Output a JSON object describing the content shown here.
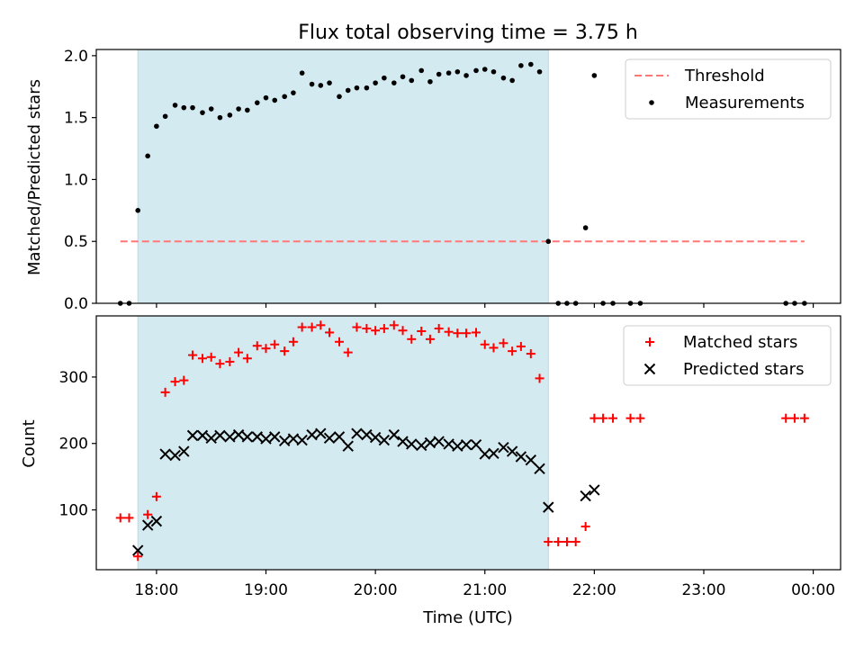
{
  "chart_data": {
    "type": "scatter",
    "title": "Flux total observing time = 3.75 h",
    "xlabel": "Time (UTC)",
    "x_unit": "hours (UTC, 24+ = after midnight)",
    "xlim": [
      17.45,
      24.25
    ],
    "x_ticks": [
      {
        "value": 18,
        "label": "18:00"
      },
      {
        "value": 19,
        "label": "19:00"
      },
      {
        "value": 20,
        "label": "20:00"
      },
      {
        "value": 21,
        "label": "21:00"
      },
      {
        "value": 22,
        "label": "22:00"
      },
      {
        "value": 23,
        "label": "23:00"
      },
      {
        "value": 24,
        "label": "00:00"
      }
    ],
    "observing_window": [
      17.83,
      21.58
    ],
    "panels": [
      {
        "id": "ratio",
        "ylabel": "Matched/Predicted stars",
        "ylim": [
          0,
          2.05
        ],
        "yticks": [
          {
            "value": 0,
            "label": "0.0"
          },
          {
            "value": 0.5,
            "label": "0.5"
          },
          {
            "value": 1.0,
            "label": "1.0"
          },
          {
            "value": 1.5,
            "label": "1.5"
          },
          {
            "value": 2.0,
            "label": "2.0"
          }
        ],
        "threshold": {
          "name": "Threshold",
          "value": 0.5,
          "x_range": [
            17.67,
            23.92
          ],
          "color": "#ff7777"
        },
        "legend": {
          "position": "upper-right",
          "entries": [
            "Threshold",
            "Measurements"
          ]
        },
        "series": [
          {
            "name": "Measurements",
            "marker": "dot",
            "color": "#000000",
            "x": [
              17.67,
              17.75,
              17.83,
              17.92,
              18.0,
              18.08,
              18.17,
              18.25,
              18.33,
              18.42,
              18.5,
              18.58,
              18.67,
              18.75,
              18.83,
              18.92,
              19.0,
              19.08,
              19.17,
              19.25,
              19.33,
              19.42,
              19.5,
              19.58,
              19.67,
              19.75,
              19.83,
              19.92,
              20.0,
              20.08,
              20.17,
              20.25,
              20.33,
              20.42,
              20.5,
              20.58,
              20.67,
              20.75,
              20.83,
              20.92,
              21.0,
              21.08,
              21.17,
              21.25,
              21.33,
              21.42,
              21.5,
              21.58,
              21.67,
              21.75,
              21.83,
              21.92,
              22.0,
              22.08,
              22.17,
              22.33,
              22.42,
              23.75,
              23.83,
              23.92
            ],
            "y": [
              0.0,
              0.0,
              0.75,
              1.19,
              1.43,
              1.51,
              1.6,
              1.58,
              1.58,
              1.54,
              1.57,
              1.5,
              1.52,
              1.57,
              1.56,
              1.62,
              1.66,
              1.64,
              1.67,
              1.7,
              1.86,
              1.77,
              1.76,
              1.78,
              1.67,
              1.72,
              1.74,
              1.74,
              1.78,
              1.82,
              1.78,
              1.83,
              1.8,
              1.88,
              1.79,
              1.85,
              1.86,
              1.87,
              1.84,
              1.88,
              1.89,
              1.87,
              1.82,
              1.8,
              1.92,
              1.93,
              1.87,
              0.5,
              0.0,
              0.0,
              0.0,
              0.61,
              1.84,
              0.0,
              0.0,
              0.0,
              0.0,
              0.0,
              0.0,
              0.0
            ]
          }
        ]
      },
      {
        "id": "count",
        "ylabel": "Count",
        "ylim": [
          10,
          392
        ],
        "yticks": [
          {
            "value": 100,
            "label": "100"
          },
          {
            "value": 200,
            "label": "200"
          },
          {
            "value": 300,
            "label": "300"
          }
        ],
        "legend": {
          "position": "upper-right",
          "entries": [
            "Matched stars",
            "Predicted stars"
          ]
        },
        "series": [
          {
            "name": "Matched stars",
            "marker": "plus",
            "color": "#ff0000",
            "x": [
              17.67,
              17.75,
              17.83,
              17.92,
              18.0,
              18.08,
              18.17,
              18.25,
              18.33,
              18.42,
              18.5,
              18.58,
              18.67,
              18.75,
              18.83,
              18.92,
              19.0,
              19.08,
              19.17,
              19.25,
              19.33,
              19.42,
              19.5,
              19.58,
              19.67,
              19.75,
              19.83,
              19.92,
              20.0,
              20.08,
              20.17,
              20.25,
              20.33,
              20.42,
              20.5,
              20.58,
              20.67,
              20.75,
              20.83,
              20.92,
              21.0,
              21.08,
              21.17,
              21.25,
              21.33,
              21.42,
              21.5,
              21.58,
              21.67,
              21.75,
              21.83,
              21.92,
              22.0,
              22.08,
              22.17,
              22.33,
              22.42,
              23.75,
              23.83,
              23.92
            ],
            "y": [
              88,
              88,
              30,
              93,
              120,
              277,
              293,
              295,
              333,
              328,
              330,
              320,
              323,
              337,
              328,
              347,
              343,
              349,
              339,
              353,
              375,
              375,
              378,
              367,
              353,
              337,
              375,
              373,
              370,
              373,
              378,
              370,
              357,
              369,
              357,
              373,
              368,
              366,
              366,
              367,
              349,
              344,
              351,
              339,
              346,
              335,
              298,
              52,
              52,
              52,
              52,
              75,
              238,
              238,
              238,
              238,
              238,
              238,
              238,
              238
            ]
          },
          {
            "name": "Predicted stars",
            "marker": "x",
            "color": "#000000",
            "x": [
              17.83,
              17.92,
              18.0,
              18.08,
              18.17,
              18.25,
              18.33,
              18.42,
              18.5,
              18.58,
              18.67,
              18.75,
              18.83,
              18.92,
              19.0,
              19.08,
              19.17,
              19.25,
              19.33,
              19.42,
              19.5,
              19.58,
              19.67,
              19.75,
              19.83,
              19.92,
              20.0,
              20.08,
              20.17,
              20.25,
              20.33,
              20.42,
              20.5,
              20.58,
              20.67,
              20.75,
              20.83,
              20.92,
              21.0,
              21.08,
              21.17,
              21.25,
              21.33,
              21.42,
              21.5,
              21.58,
              21.92,
              22.0
            ],
            "y": [
              39,
              77,
              83,
              184,
              182,
              188,
              212,
              212,
              208,
              212,
              210,
              213,
              210,
              210,
              207,
              210,
              204,
              207,
              205,
              213,
              215,
              208,
              210,
              196,
              215,
              213,
              209,
              205,
              213,
              203,
              199,
              197,
              201,
              203,
              199,
              196,
              198,
              198,
              184,
              185,
              194,
              188,
              180,
              175,
              162,
              104,
              121,
              130
            ]
          }
        ]
      }
    ],
    "colors": {
      "window_fill": "#d3eaf1",
      "matched": "#ff0000",
      "predicted": "#000000",
      "measurement": "#000000",
      "threshold": "#ff7777"
    }
  }
}
